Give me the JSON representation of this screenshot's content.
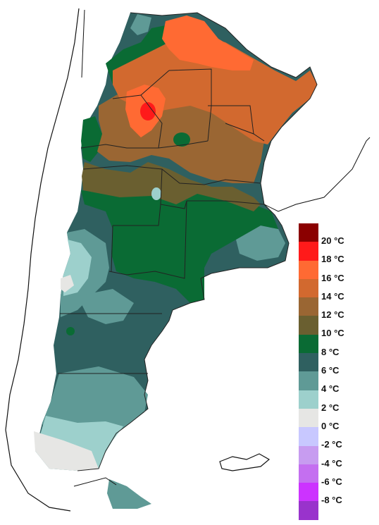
{
  "legend": {
    "items": [
      {
        "label": "20 °C",
        "color": "#8b0000"
      },
      {
        "label": "18 °C",
        "color": "#ff1a1a"
      },
      {
        "label": "16 °C",
        "color": "#ff6a33"
      },
      {
        "label": "14 °C",
        "color": "#d2692f"
      },
      {
        "label": "12 °C",
        "color": "#9a6633"
      },
      {
        "label": "10 °C",
        "color": "#6a5f30"
      },
      {
        "label": "8 °C",
        "color": "#0a6b34"
      },
      {
        "label": "6 °C",
        "color": "#2f6060"
      },
      {
        "label": "4 °C",
        "color": "#5f9a96"
      },
      {
        "label": "2 °C",
        "color": "#9dd0cc"
      },
      {
        "label": "0 °C",
        "color": "#e6e6e4"
      },
      {
        "label": "-2 °C",
        "color": "#c8c8ff"
      },
      {
        "label": "-4 °C",
        "color": "#c79cf0"
      },
      {
        "label": "-6 °C",
        "color": "#c46ff0"
      },
      {
        "label": "-8 °C",
        "color": "#cc33ff"
      },
      {
        "label": "",
        "color": "#9933cc"
      }
    ]
  }
}
